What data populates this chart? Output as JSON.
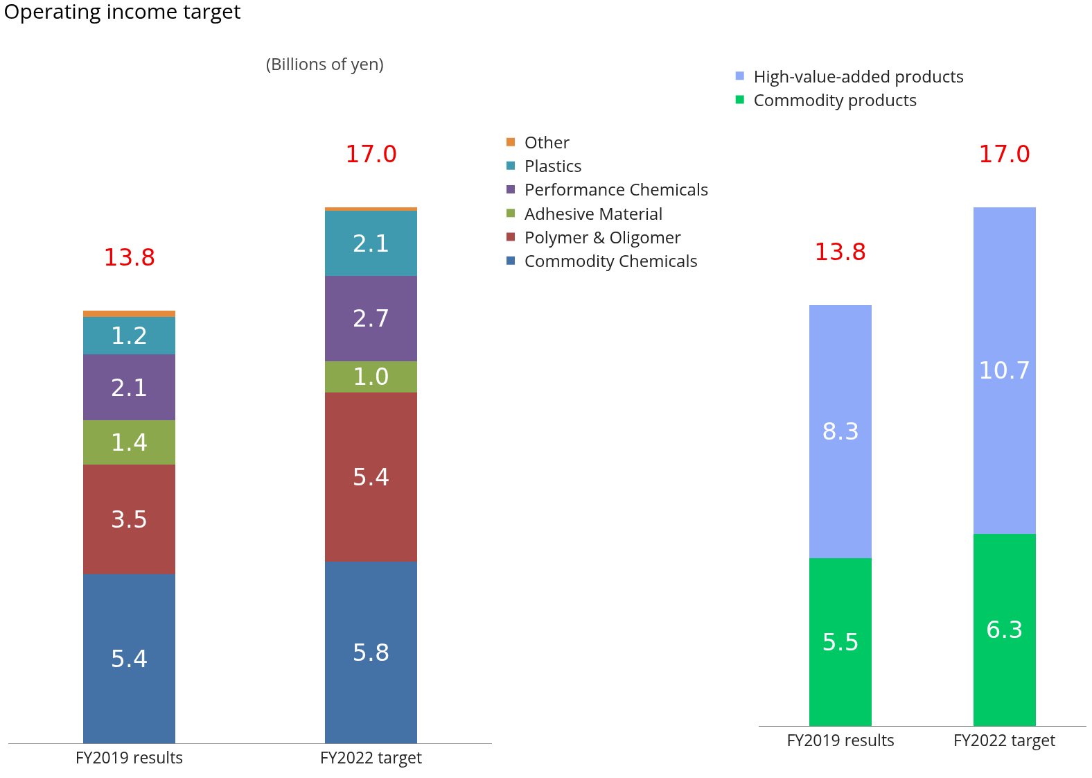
{
  "chart_data": [
    {
      "type": "bar",
      "title": "Operating income target",
      "annotations": [
        "(Billions of yen)"
      ],
      "categories": [
        "FY2019 results",
        "FY2022 target"
      ],
      "stacked": true,
      "tick_labels": "x",
      "grid": false,
      "legend": "top right",
      "totals": [
        "13.8",
        "17.0"
      ],
      "series": [
        {
          "name": "Commodity Chemicals",
          "color": "#4472a6",
          "values": [
            5.4,
            5.8
          ],
          "value_labels": [
            "5.4",
            "5.8"
          ]
        },
        {
          "name": "Polymer & Oligomer",
          "color": "#a84a48",
          "values": [
            3.5,
            5.4
          ],
          "value_labels": [
            "3.5",
            "5.4"
          ]
        },
        {
          "name": "Adhesive Material",
          "color": "#8ba84c",
          "values": [
            1.4,
            1.0
          ],
          "value_labels": [
            "1.4",
            "1.0"
          ]
        },
        {
          "name": "Performance Chemicals",
          "color": "#735a94",
          "values": [
            2.1,
            2.7
          ],
          "value_labels": [
            "2.1",
            "2.7"
          ]
        },
        {
          "name": "Plastics",
          "color": "#3f9ab0",
          "values": [
            1.2,
            2.1
          ],
          "value_labels": [
            "1.2",
            "2.1"
          ]
        },
        {
          "name": "Other",
          "color": "#e58a3a",
          "values": [
            0.2,
            0.1
          ],
          "value_labels": [
            null,
            null
          ]
        }
      ]
    },
    {
      "type": "bar",
      "categories": [
        "FY2019 results",
        "FY2022 target"
      ],
      "stacked": true,
      "tick_labels": "x",
      "grid": false,
      "legend": "top",
      "totals": [
        "13.8",
        "17.0"
      ],
      "series": [
        {
          "name": "Commodity products",
          "color": "#00c864",
          "values": [
            5.5,
            6.3
          ],
          "value_labels": [
            "5.5",
            "6.3"
          ]
        },
        {
          "name": "High-value-added products",
          "color": "#8faaf8",
          "values": [
            8.3,
            10.7
          ],
          "value_labels": [
            "8.3",
            "10.7"
          ]
        }
      ]
    }
  ]
}
